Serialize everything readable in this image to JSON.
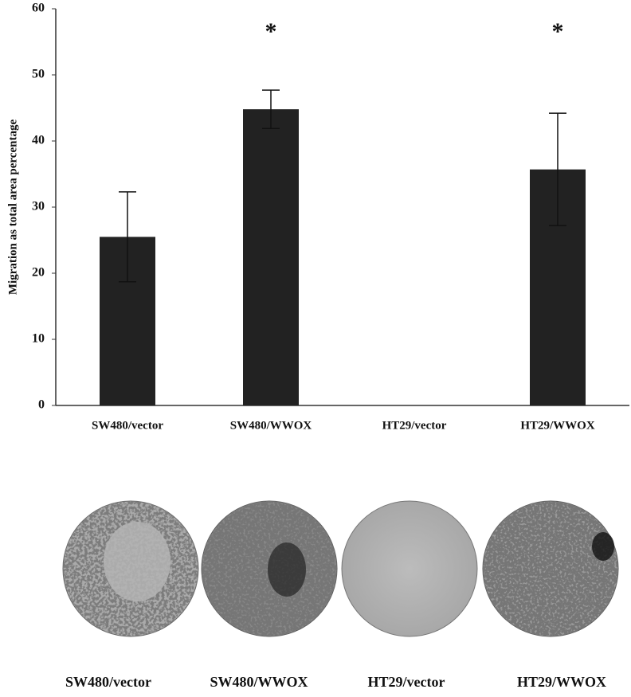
{
  "chart_data": {
    "type": "bar",
    "y_label": "Migration as total area percentage",
    "categories": [
      "SW480/vector",
      "SW480/WWOX",
      "HT29/vector",
      "HT29/WWOX"
    ],
    "values": [
      25.5,
      44.8,
      0,
      35.7
    ],
    "errors": [
      6.8,
      2.9,
      null,
      8.5
    ],
    "color": "#222222",
    "ylim": [
      0,
      60
    ],
    "yticks": [
      0,
      10,
      20,
      30,
      40,
      50,
      60
    ],
    "annotations": [
      {
        "text": "*",
        "category": "SW480/WWOX"
      },
      {
        "text": "*",
        "category": "HT29/WWOX"
      }
    ]
  },
  "image_panel": {
    "labels": [
      "SW480/vector",
      "SW480/WWOX",
      "HT29/vector",
      "HT29/WWOX"
    ]
  }
}
